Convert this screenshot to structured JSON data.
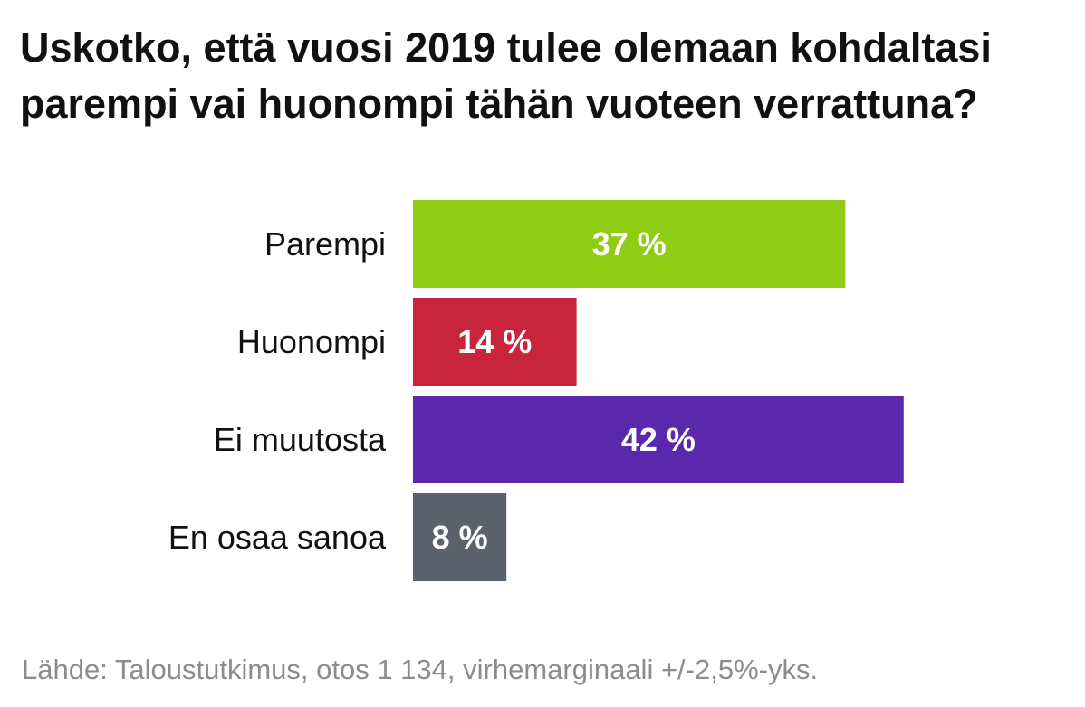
{
  "chart_data": {
    "type": "bar",
    "orientation": "horizontal",
    "title": "Uskotko, että vuosi 2019 tulee olemaan kohdaltasi parempi vai huonompi tähän vuoteen verrattuna?",
    "categories": [
      "Parempi",
      "Huonompi",
      "Ei muutosta",
      "En osaa sanoa"
    ],
    "values": [
      37,
      14,
      42,
      8
    ],
    "value_labels": [
      "37 %",
      "14 %",
      "42 %",
      "8 %"
    ],
    "colors": [
      "#8fcc14",
      "#c8243c",
      "#5b27ad",
      "#5a626e"
    ],
    "unit": "%",
    "grid": false,
    "legend": "none"
  },
  "source": "Lähde: Taloustutkimus, otos 1 134, virhemarginaali +/-2,5%-yks."
}
